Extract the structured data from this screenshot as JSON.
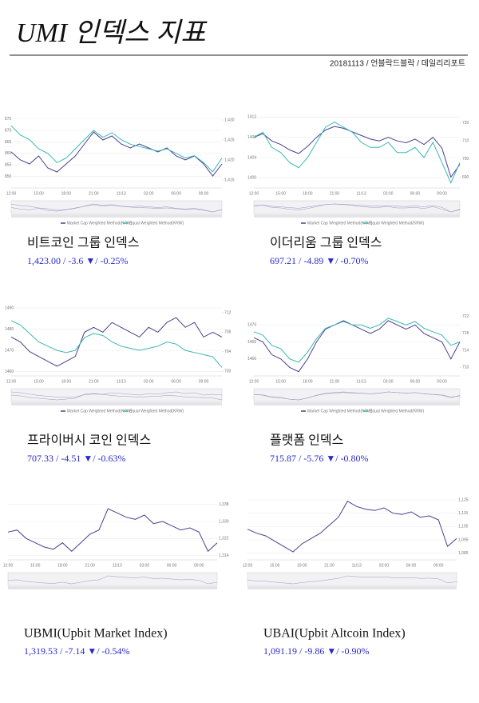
{
  "header": {
    "title": "UMI 인덱스 지표",
    "byline": "20181113 / 언블락드블락 / 데일리리포트"
  },
  "chart_data": [
    {
      "type": "line",
      "title": "비트코인 그룹 인덱스",
      "summary": "1,423.00 / -3.6 ▼/ -0.25%",
      "categories": [
        "12:00",
        null,
        null,
        "15:00",
        null,
        null,
        "18:00",
        null,
        null,
        "21:00",
        null,
        null,
        "11/13",
        null,
        null,
        "03:00",
        null,
        null,
        "06:00",
        null,
        null,
        "09:00",
        null,
        null
      ],
      "ylim": [
        845,
        878
      ],
      "yticks": [
        850,
        855,
        860,
        865,
        870,
        875
      ],
      "y2lim": [
        1413,
        1432
      ],
      "y2ticks": [
        {
          "value": 1415,
          "label": "1,415"
        },
        {
          "value": 1420,
          "label": "1,420"
        },
        {
          "value": 1425,
          "label": "1,425"
        },
        {
          "value": 1430,
          "label": "1,430"
        }
      ],
      "series": [
        {
          "name": "Market Cap Weighted Method(KRW)",
          "color": "#4b3f8f",
          "axis": "y2",
          "values": [
            1422,
            1420,
            1419,
            1421,
            1418,
            1417,
            1419,
            1421,
            1424,
            1427,
            1425,
            1426,
            1424,
            1423,
            1424,
            1423,
            1422,
            1423,
            1421,
            1420,
            1421,
            1419,
            1416,
            1419
          ]
        },
        {
          "name": "Equal Weighted Method(KRW)",
          "color": "#3bb8b0",
          "values": [
            872,
            868,
            866,
            862,
            860,
            856,
            858,
            862,
            866,
            870,
            867,
            869,
            866,
            864,
            863,
            862,
            861,
            862,
            860,
            858,
            859,
            856,
            852,
            858
          ]
        }
      ]
    },
    {
      "type": "line",
      "title": "이더리움 그룹 인덱스",
      "summary": "697.21 / -4.89 ▼/ -0.70%",
      "categories": [
        "12:00",
        null,
        null,
        "15:00",
        null,
        null,
        "18:00",
        null,
        null,
        "21:00",
        null,
        null,
        "11/13",
        null,
        null,
        "03:00",
        null,
        null,
        "06:00",
        null,
        null,
        "09:00",
        null,
        null
      ],
      "ylim": [
        1398,
        1413
      ],
      "yticks": [
        1400,
        1404,
        1408,
        1412
      ],
      "y2lim": [
        684,
        726
      ],
      "y2ticks": [
        690,
        700,
        710,
        720
      ],
      "series": [
        {
          "name": "Market Cap Weighted Method(KRW)",
          "color": "#4b3f8f",
          "axis": "y2",
          "values": [
            712,
            714,
            710,
            708,
            705,
            703,
            707,
            712,
            716,
            718,
            717,
            715,
            713,
            711,
            710,
            712,
            710,
            709,
            711,
            708,
            712,
            706,
            690,
            697
          ]
        },
        {
          "name": "Equal Weighted Method(KRW)",
          "color": "#3bb8b0",
          "values": [
            1408,
            1409,
            1406,
            1405,
            1403,
            1402,
            1404,
            1407,
            1410,
            1411,
            1410,
            1409,
            1407,
            1406,
            1406,
            1407,
            1405,
            1405,
            1406,
            1404,
            1407,
            1403,
            1399,
            1403
          ]
        }
      ]
    },
    {
      "type": "line",
      "title": "프라이버시 코인 인덱스",
      "summary": "707.33 / -4.51 ▼/ -0.63%",
      "categories": [
        "12:00",
        null,
        null,
        "15:00",
        null,
        null,
        "18:00",
        null,
        null,
        "21:00",
        null,
        null,
        "11/13",
        null,
        null,
        "03:00",
        null,
        null,
        "06:00",
        null,
        null,
        "09:00",
        null,
        null
      ],
      "ylim": [
        1458,
        1490
      ],
      "yticks": [
        1460,
        1470,
        1480,
        1490
      ],
      "y2lim": [
        699,
        713
      ],
      "y2ticks": [
        700,
        704,
        708,
        712
      ],
      "series": [
        {
          "name": "Market Cap Weighted Method(KRW)",
          "color": "#4b3f8f",
          "axis": "y2",
          "values": [
            707,
            706,
            704,
            703,
            702,
            701,
            702,
            703,
            708,
            709,
            708,
            710,
            709,
            708,
            707,
            709,
            708,
            710,
            711,
            709,
            710,
            707,
            708,
            707
          ]
        },
        {
          "name": "Equal Weighted Method(KRW)",
          "color": "#3bb8b0",
          "values": [
            1484,
            1482,
            1478,
            1474,
            1472,
            1470,
            1469,
            1470,
            1476,
            1478,
            1477,
            1474,
            1472,
            1471,
            1470,
            1471,
            1472,
            1474,
            1473,
            1470,
            1469,
            1468,
            1467,
            1462
          ]
        }
      ]
    },
    {
      "type": "line",
      "title": "플랫폼 인덱스",
      "summary": "715.87 / -5.76 ▼/ -0.80%",
      "categories": [
        "12:00",
        null,
        null,
        "15:00",
        null,
        null,
        "18:00",
        null,
        null,
        "21:00",
        null,
        null,
        "11/13",
        null,
        null,
        "03:00",
        null,
        null,
        "06:00",
        null,
        null,
        "09:00",
        null,
        null
      ],
      "ylim": [
        1455,
        1475
      ],
      "yticks": [
        1460,
        1465,
        1470
      ],
      "y2lim": [
        708,
        724
      ],
      "y2ticks": [
        710,
        714,
        718,
        722
      ],
      "series": [
        {
          "name": "Market Cap Weighted Method(KRW)",
          "color": "#4b3f8f",
          "axis": "y2",
          "values": [
            717,
            716,
            713,
            712,
            710,
            709,
            712,
            716,
            719,
            720,
            721,
            720,
            719,
            718,
            719,
            721,
            720,
            719,
            720,
            718,
            717,
            716,
            712,
            716
          ]
        },
        {
          "name": "Equal Weighted Method(KRW)",
          "color": "#3bb8b0",
          "values": [
            1468,
            1467,
            1464,
            1463,
            1460,
            1459,
            1462,
            1466,
            1469,
            1470,
            1471,
            1470,
            1470,
            1469,
            1470,
            1472,
            1471,
            1470,
            1471,
            1469,
            1468,
            1467,
            1464,
            1465
          ]
        }
      ]
    },
    {
      "type": "line",
      "title": "UBMI(Upbit Market Index)",
      "summary": "1,319.53 / -7.14 ▼/ -0.54%",
      "categories": [
        "12:00",
        null,
        null,
        "15:00",
        null,
        null,
        "18:00",
        null,
        null,
        "21:00",
        null,
        null,
        "11/13",
        null,
        null,
        "03:00",
        null,
        null,
        "06:00",
        null,
        null,
        "09:00",
        null,
        null
      ],
      "ylim": [
        1312,
        1342
      ],
      "yticks": [
        {
          "value": 1314,
          "label": "1,314"
        },
        {
          "value": 1322,
          "label": "1,322"
        },
        {
          "value": 1330,
          "label": "1,330"
        },
        {
          "value": 1338,
          "label": "1,338"
        }
      ],
      "series": [
        {
          "color": "#4b3f8f",
          "values": [
            1325,
            1326,
            1322,
            1320,
            1318,
            1317,
            1320,
            1316,
            1320,
            1324,
            1326,
            1336,
            1334,
            1332,
            1331,
            1333,
            1329,
            1330,
            1328,
            1326,
            1327,
            1325,
            1316,
            1320
          ]
        }
      ]
    },
    {
      "type": "line",
      "title": "UBAI(Upbit Altcoin Index)",
      "summary": "1,091.19 / -9.86 ▼/ -0.90%",
      "categories": [
        "12:00",
        null,
        null,
        "15:00",
        null,
        null,
        "18:00",
        null,
        null,
        "21:00",
        null,
        null,
        "11/13",
        null,
        null,
        "03:00",
        null,
        null,
        "06:00",
        null,
        null,
        "09:00",
        null,
        null
      ],
      "ylim": [
        1080,
        1128
      ],
      "yticks": [
        {
          "value": 1085,
          "label": "1,085"
        },
        {
          "value": 1095,
          "label": "1,095"
        },
        {
          "value": 1105,
          "label": "1,105"
        },
        {
          "value": 1115,
          "label": "1,115"
        },
        {
          "value": 1125,
          "label": "1,125"
        }
      ],
      "series": [
        {
          "color": "#4b3f8f",
          "values": [
            1103,
            1100,
            1098,
            1094,
            1090,
            1086,
            1092,
            1096,
            1100,
            1106,
            1112,
            1124,
            1120,
            1118,
            1117,
            1119,
            1115,
            1114,
            1116,
            1112,
            1113,
            1110,
            1090,
            1096
          ]
        }
      ]
    }
  ]
}
